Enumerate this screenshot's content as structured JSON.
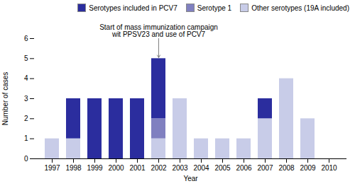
{
  "chart_data": {
    "type": "bar",
    "stacked": true,
    "categories": [
      "1997",
      "1998",
      "1999",
      "2000",
      "2001",
      "2002",
      "2003",
      "2004",
      "2005",
      "2006",
      "2007",
      "2008",
      "2009",
      "2010"
    ],
    "series": [
      {
        "name": "Other serotypes (19A included)",
        "color": "#c8cce8",
        "values": [
          1,
          1,
          0,
          0,
          0,
          1,
          3,
          1,
          1,
          1,
          2,
          4,
          2,
          0
        ]
      },
      {
        "name": "Serotype 1",
        "color": "#8080c0",
        "values": [
          0,
          0,
          0,
          0,
          0,
          1,
          0,
          0,
          0,
          0,
          0,
          0,
          0,
          0
        ]
      },
      {
        "name": "Serotypes included in PCV7",
        "color": "#2b2d9e",
        "values": [
          0,
          2,
          3,
          3,
          3,
          3,
          0,
          0,
          0,
          0,
          1,
          0,
          0,
          0
        ]
      }
    ],
    "xlabel": "Year",
    "ylabel": "Number of cases",
    "ylim": [
      0,
      6
    ],
    "yticks": [
      0,
      1,
      2,
      3,
      4,
      5,
      6
    ],
    "grid": false,
    "legend": "upper right",
    "annotations": [
      {
        "text": "Start of mass immunization campaign\nwit PPSV23 and use of PCV7",
        "x": "2002",
        "y": 5.05
      }
    ]
  }
}
